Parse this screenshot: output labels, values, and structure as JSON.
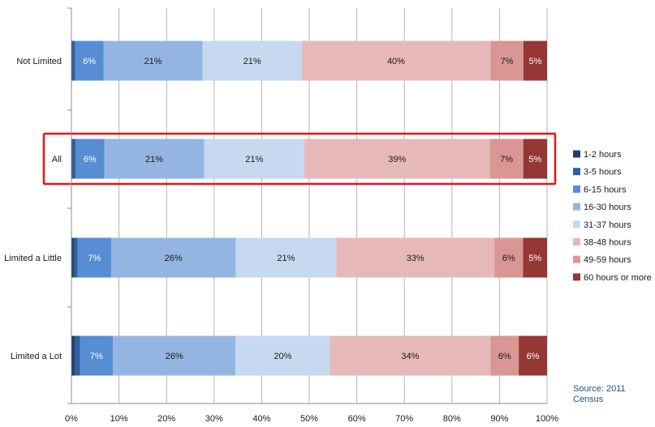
{
  "chart_data": {
    "type": "bar",
    "orientation": "horizontal",
    "stacked": true,
    "categories": [
      "Not Limited",
      "All",
      "Limited a Little",
      "Limited a Lot"
    ],
    "highlighted_category": "All",
    "highlight_color": "#e8141b",
    "series": [
      {
        "name": "1-2 hours",
        "color": "#1f3f6e",
        "values": [
          0.3,
          0.3,
          0.5,
          0.8
        ],
        "labels": [
          "",
          "",
          "",
          ""
        ]
      },
      {
        "name": "3-5 hours",
        "color": "#2f5f9c",
        "values": [
          0.5,
          0.6,
          0.8,
          1.0
        ],
        "labels": [
          "",
          "",
          "",
          ""
        ]
      },
      {
        "name": "6-15 hours",
        "color": "#568dd3",
        "values": [
          6,
          6,
          7,
          7
        ],
        "labels": [
          "6%",
          "6%",
          "7%",
          "7%"
        ]
      },
      {
        "name": "16-30 hours",
        "color": "#94b5e2",
        "values": [
          21,
          21,
          26,
          26
        ],
        "labels": [
          "21%",
          "21%",
          "26%",
          "26%"
        ]
      },
      {
        "name": "31-37 hours",
        "color": "#c6d9f1",
        "values": [
          21,
          21,
          21,
          20
        ],
        "labels": [
          "21%",
          "21%",
          "21%",
          "20%"
        ]
      },
      {
        "name": "38-48 hours",
        "color": "#e6b9b8",
        "values": [
          40,
          39,
          33,
          34
        ],
        "labels": [
          "40%",
          "39%",
          "33%",
          "34%"
        ]
      },
      {
        "name": "49-59 hours",
        "color": "#d99694",
        "values": [
          7,
          7,
          6,
          6
        ],
        "labels": [
          "7%",
          "7%",
          "6%",
          "6%"
        ]
      },
      {
        "name": "60 hours or more",
        "color": "#953735",
        "values": [
          5,
          5,
          5,
          6
        ],
        "labels": [
          "5%",
          "5%",
          "5%",
          "6%"
        ]
      }
    ],
    "xlim": [
      0,
      100
    ],
    "x_ticks": [
      "0%",
      "10%",
      "20%",
      "30%",
      "40%",
      "50%",
      "60%",
      "70%",
      "80%",
      "90%",
      "100%"
    ],
    "grid": "vertical",
    "legend_position": "right",
    "title": "",
    "xlabel": "",
    "ylabel": "",
    "source_note": "Source: 2011 Census"
  }
}
